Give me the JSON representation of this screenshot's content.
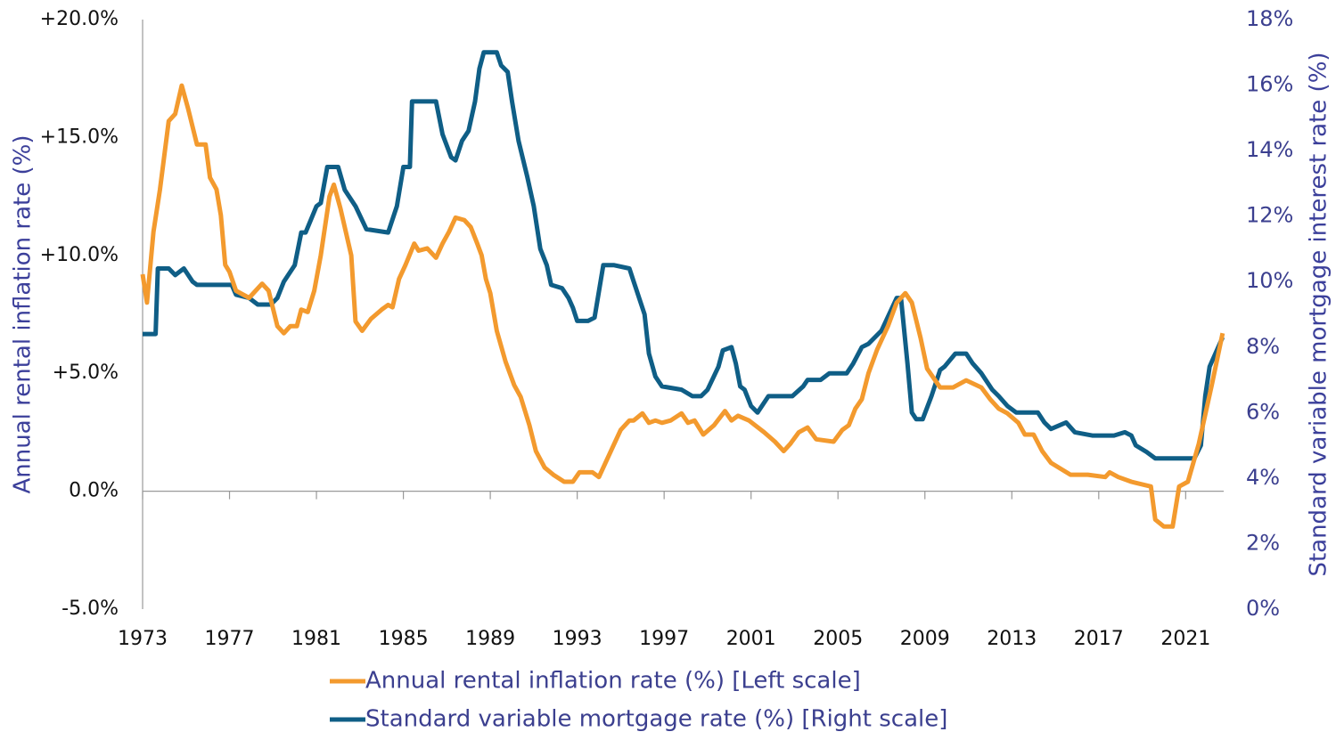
{
  "chart_data": {
    "type": "line",
    "ylabel": "Annual rental inflation rate (%)",
    "y2label": "Standard variable mortgage interest rate (%)",
    "xlim": [
      1973,
      2022.75
    ],
    "xticks": [
      1973,
      1977,
      1981,
      1985,
      1989,
      1993,
      1997,
      2001,
      2005,
      2009,
      2013,
      2017,
      2021
    ],
    "ylim": [
      -5,
      20
    ],
    "yticks": [
      {
        "value": -5,
        "label": "-5.0%"
      },
      {
        "value": 0,
        "label": "0.0%"
      },
      {
        "value": 5,
        "label": "+5.0%"
      },
      {
        "value": 10,
        "label": "+10.0%"
      },
      {
        "value": 15,
        "label": "+15.0%"
      },
      {
        "value": 20,
        "label": "+20.0%"
      }
    ],
    "y2lim": [
      0,
      18
    ],
    "y2ticks": [
      {
        "value": 0,
        "label": "0%"
      },
      {
        "value": 2,
        "label": "2%"
      },
      {
        "value": 4,
        "label": "4%"
      },
      {
        "value": 6,
        "label": "6%"
      },
      {
        "value": 8,
        "label": "8%"
      },
      {
        "value": 10,
        "label": "10%"
      },
      {
        "value": 12,
        "label": "12%"
      },
      {
        "value": 14,
        "label": "14%"
      },
      {
        "value": 16,
        "label": "16%"
      },
      {
        "value": 18,
        "label": "18%"
      }
    ],
    "legend": "bottom",
    "series": [
      {
        "name": "Annual rental inflation rate (%) [Left scale]",
        "color": "#f39a2e",
        "axis": "y",
        "x": [
          1973.0,
          1973.2,
          1973.5,
          1973.8,
          1974.2,
          1974.5,
          1974.8,
          1975.1,
          1975.5,
          1975.9,
          1976.1,
          1976.4,
          1976.6,
          1976.8,
          1977.0,
          1977.3,
          1977.9,
          1978.5,
          1978.8,
          1979.2,
          1979.5,
          1979.8,
          1980.1,
          1980.3,
          1980.6,
          1980.9,
          1981.2,
          1981.6,
          1981.8,
          1982.1,
          1982.6,
          1982.8,
          1983.1,
          1983.5,
          1984.0,
          1984.3,
          1984.5,
          1984.8,
          1985.1,
          1985.5,
          1985.7,
          1986.1,
          1986.5,
          1986.8,
          1987.1,
          1987.4,
          1987.8,
          1988.1,
          1988.4,
          1988.6,
          1988.8,
          1989.0,
          1989.3,
          1989.7,
          1990.1,
          1990.4,
          1990.8,
          1991.1,
          1991.5,
          1991.9,
          1992.4,
          1992.8,
          1993.1,
          1993.7,
          1994.0,
          1994.3,
          1994.7,
          1995.0,
          1995.4,
          1995.6,
          1996.0,
          1996.3,
          1996.6,
          1996.9,
          1997.3,
          1997.8,
          1998.1,
          1998.4,
          1998.8,
          1999.3,
          1999.8,
          2000.1,
          2000.4,
          2000.9,
          2001.6,
          2002.1,
          2002.5,
          2002.8,
          2003.2,
          2003.6,
          2004.0,
          2004.8,
          2005.2,
          2005.5,
          2005.8,
          2006.1,
          2006.4,
          2006.8,
          2007.3,
          2007.7,
          2008.1,
          2008.4,
          2008.8,
          2009.1,
          2009.7,
          2010.3,
          2010.9,
          2011.6,
          2012.0,
          2012.4,
          2012.8,
          2013.3,
          2013.6,
          2014.0,
          2014.4,
          2014.8,
          2015.7,
          2016.5,
          2017.3,
          2017.5,
          2017.9,
          2018.5,
          2019.4,
          2019.6,
          2020.0,
          2020.4,
          2020.7,
          2021.1,
          2021.6,
          2022.2,
          2022.7
        ],
        "values": [
          9.2,
          8.0,
          11.0,
          12.8,
          15.7,
          16.0,
          17.2,
          16.2,
          14.7,
          14.7,
          13.3,
          12.8,
          11.7,
          9.6,
          9.3,
          8.5,
          8.2,
          8.8,
          8.5,
          7.0,
          6.7,
          7.0,
          7.0,
          7.7,
          7.6,
          8.5,
          10.0,
          12.5,
          13.0,
          12.0,
          10.0,
          7.2,
          6.8,
          7.3,
          7.7,
          7.9,
          7.8,
          9.0,
          9.6,
          10.5,
          10.2,
          10.3,
          9.9,
          10.5,
          11.0,
          11.6,
          11.5,
          11.2,
          10.5,
          10.0,
          9.0,
          8.4,
          6.8,
          5.5,
          4.5,
          4.0,
          2.8,
          1.7,
          1.0,
          0.7,
          0.4,
          0.4,
          0.8,
          0.8,
          0.6,
          1.2,
          2.0,
          2.6,
          3.0,
          3.0,
          3.3,
          2.9,
          3.0,
          2.9,
          3.0,
          3.3,
          2.9,
          3.0,
          2.4,
          2.8,
          3.4,
          3.0,
          3.2,
          3.0,
          2.5,
          2.1,
          1.7,
          2.0,
          2.5,
          2.7,
          2.2,
          2.1,
          2.6,
          2.8,
          3.5,
          3.9,
          5.0,
          6.0,
          7.0,
          8.0,
          8.4,
          8.0,
          6.5,
          5.2,
          4.4,
          4.4,
          4.7,
          4.4,
          3.9,
          3.5,
          3.3,
          2.9,
          2.4,
          2.4,
          1.7,
          1.2,
          0.7,
          0.7,
          0.6,
          0.8,
          0.6,
          0.4,
          0.2,
          -1.2,
          -1.5,
          -1.5,
          0.2,
          0.4,
          2.0,
          4.5,
          6.7
        ]
      },
      {
        "name": "Standard variable mortgage rate (%) [Right scale]",
        "color": "#0f5e86",
        "axis": "y2",
        "x": [
          1973.0,
          1973.6,
          1973.7,
          1974.2,
          1974.5,
          1974.9,
          1975.3,
          1975.5,
          1977.1,
          1977.3,
          1977.9,
          1978.3,
          1978.9,
          1979.2,
          1979.5,
          1980.0,
          1980.3,
          1980.5,
          1981.0,
          1981.2,
          1981.5,
          1982.0,
          1982.3,
          1982.8,
          1983.3,
          1984.3,
          1984.7,
          1985.0,
          1985.3,
          1985.4,
          1986.5,
          1986.8,
          1987.2,
          1987.4,
          1987.7,
          1988.0,
          1988.3,
          1988.5,
          1988.7,
          1989.3,
          1989.5,
          1989.8,
          1990.0,
          1990.3,
          1990.7,
          1991.0,
          1991.3,
          1991.6,
          1991.8,
          1992.3,
          1992.6,
          1992.8,
          1993.0,
          1993.5,
          1993.8,
          1994.2,
          1994.7,
          1995.4,
          1995.6,
          1996.1,
          1996.3,
          1996.6,
          1996.9,
          1997.8,
          1998.3,
          1998.7,
          1999.0,
          1999.5,
          1999.7,
          2000.1,
          2000.3,
          2000.5,
          2000.7,
          2001.0,
          2001.3,
          2001.8,
          2002.9,
          2003.4,
          2003.6,
          2004.2,
          2004.6,
          2005.4,
          2005.7,
          2006.1,
          2006.4,
          2007.0,
          2007.7,
          2007.9,
          2008.2,
          2008.4,
          2008.6,
          2008.9,
          2009.3,
          2009.7,
          2009.9,
          2010.4,
          2010.9,
          2011.2,
          2011.6,
          2012.1,
          2012.4,
          2012.8,
          2013.2,
          2014.2,
          2014.5,
          2014.8,
          2015.5,
          2015.9,
          2016.7,
          2017.7,
          2018.2,
          2018.5,
          2018.7,
          2019.2,
          2019.6,
          2021.4,
          2021.7,
          2021.9,
          2022.1,
          2022.7
        ],
        "values": [
          8.4,
          8.4,
          10.4,
          10.4,
          10.2,
          10.4,
          10.0,
          9.9,
          9.9,
          9.6,
          9.5,
          9.3,
          9.3,
          9.5,
          10.0,
          10.5,
          11.5,
          11.5,
          12.3,
          12.4,
          13.5,
          13.5,
          12.8,
          12.3,
          11.6,
          11.5,
          12.3,
          13.5,
          13.5,
          15.5,
          15.5,
          14.5,
          13.8,
          13.7,
          14.3,
          14.6,
          15.5,
          16.5,
          17.0,
          17.0,
          16.6,
          16.4,
          15.5,
          14.3,
          13.2,
          12.3,
          11.0,
          10.5,
          9.9,
          9.8,
          9.5,
          9.2,
          8.8,
          8.8,
          8.9,
          10.5,
          10.5,
          10.4,
          10.0,
          9.0,
          7.8,
          7.1,
          6.8,
          6.7,
          6.5,
          6.5,
          6.7,
          7.4,
          7.9,
          8.0,
          7.5,
          6.8,
          6.7,
          6.2,
          6.0,
          6.5,
          6.5,
          6.8,
          7.0,
          7.0,
          7.2,
          7.2,
          7.5,
          8.0,
          8.1,
          8.5,
          9.5,
          9.5,
          7.5,
          6.0,
          5.8,
          5.8,
          6.5,
          7.3,
          7.4,
          7.8,
          7.8,
          7.5,
          7.2,
          6.7,
          6.5,
          6.2,
          6.0,
          6.0,
          5.7,
          5.5,
          5.7,
          5.4,
          5.3,
          5.3,
          5.4,
          5.3,
          5.0,
          4.8,
          4.6,
          4.6,
          5.0,
          6.5,
          7.4,
          8.3
        ]
      }
    ]
  }
}
